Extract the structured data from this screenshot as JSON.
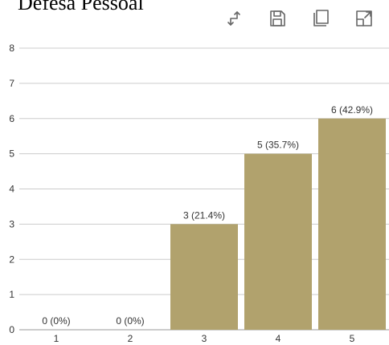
{
  "title": "Defesa Pessoal",
  "toolbar": [
    {
      "icon": "swap-axes-icon",
      "name": "swap-axes-button"
    },
    {
      "icon": "save-icon",
      "name": "save-button"
    },
    {
      "icon": "copy-icon",
      "name": "copy-button"
    },
    {
      "icon": "expand-icon",
      "name": "expand-button"
    }
  ],
  "colors": {
    "bar": "#b1a26d",
    "grid": "#cccccc",
    "icon": "#666666"
  },
  "chart_data": {
    "type": "bar",
    "title": "Defesa Pessoal",
    "categories": [
      "1",
      "2",
      "3",
      "4",
      "5"
    ],
    "values": [
      0,
      0,
      3,
      5,
      6
    ],
    "data_labels": [
      "0 (0%)",
      "0 (0%)",
      "3 (21.4%)",
      "5 (35.7%)",
      "6 (42.9%)"
    ],
    "y_ticks": [
      "0",
      "1",
      "2",
      "3",
      "4",
      "5",
      "6",
      "7",
      "8"
    ],
    "ylim": [
      0,
      8
    ],
    "grid": true,
    "legend": "none"
  }
}
